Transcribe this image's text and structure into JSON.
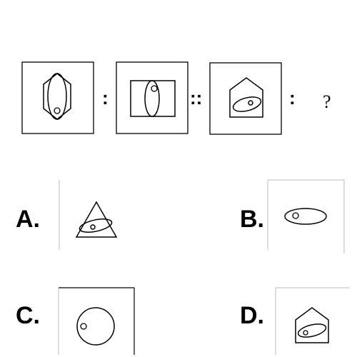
{
  "question": {
    "sep1": ":",
    "sep2": "::",
    "sep3": ":",
    "unknown": "?"
  },
  "options": [
    {
      "letter": "A.",
      "shape": "triangle-with-ellipse-and-dot"
    },
    {
      "letter": "B.",
      "shape": "ellipse-with-circle"
    },
    {
      "letter": "C.",
      "shape": "circle-with-small-circle"
    },
    {
      "letter": "D.",
      "shape": "pentagon-house-with-ellipse-and-circle"
    }
  ]
}
